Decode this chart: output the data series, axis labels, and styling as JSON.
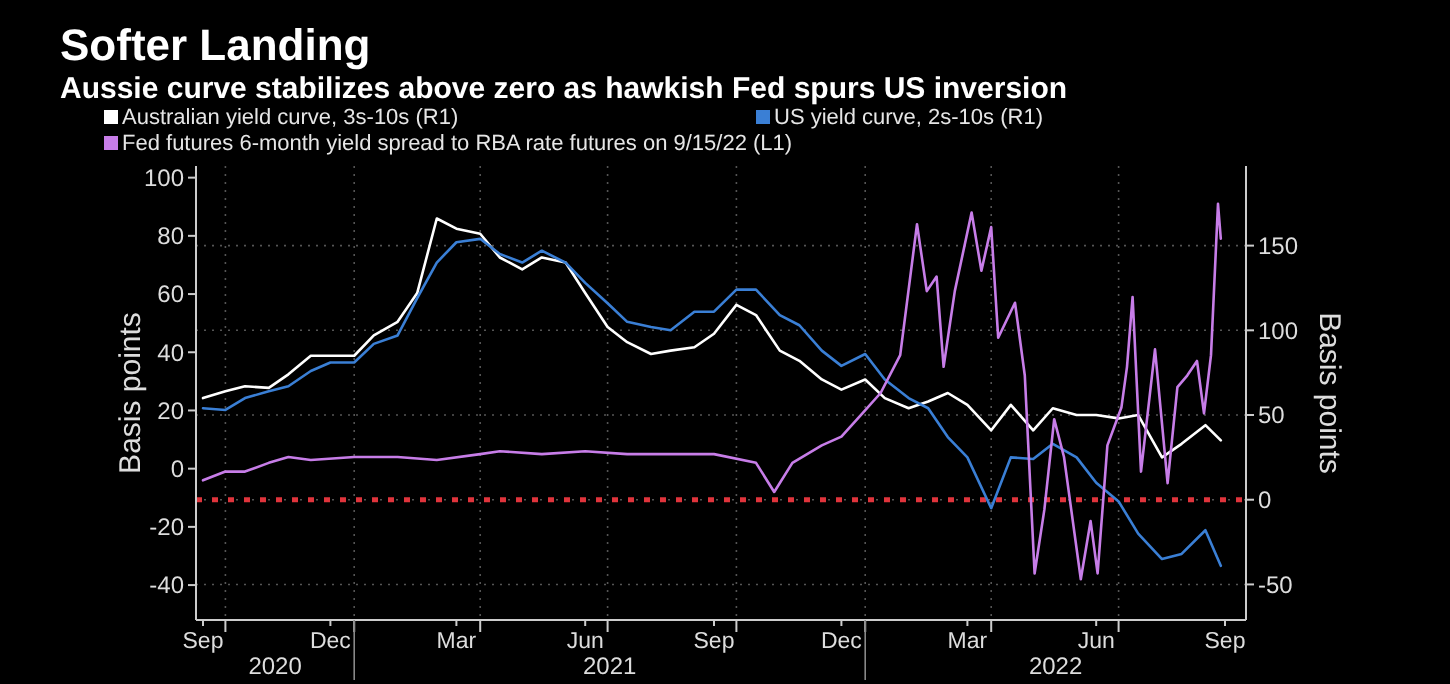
{
  "chart_data": {
    "type": "line",
    "title": "Softer Landing",
    "subtitle": "Aussie curve stabilizes above zero as hawkish Fed spurs US inversion",
    "ylabel": "Basis points",
    "y2label": "Basis points",
    "x": [
      "2020-09-15",
      "2020-10-01",
      "2020-10-15",
      "2020-11-01",
      "2020-11-15",
      "2020-12-01",
      "2020-12-15",
      "2021-01-01",
      "2021-01-15",
      "2021-02-01",
      "2021-02-15",
      "2021-03-01",
      "2021-03-15",
      "2021-04-01",
      "2021-04-15",
      "2021-05-01",
      "2021-05-15",
      "2021-06-01",
      "2021-06-15",
      "2021-07-01",
      "2021-07-15",
      "2021-08-01",
      "2021-08-15",
      "2021-09-01",
      "2021-09-15",
      "2021-10-01",
      "2021-10-15",
      "2021-11-01",
      "2021-11-15",
      "2021-12-01",
      "2021-12-15",
      "2022-01-01",
      "2022-01-15",
      "2022-02-01",
      "2022-02-15",
      "2022-03-01",
      "2022-03-15",
      "2022-04-01",
      "2022-04-15",
      "2022-05-01",
      "2022-05-15",
      "2022-06-01",
      "2022-06-15",
      "2022-07-01",
      "2022-07-15",
      "2022-08-01",
      "2022-08-15",
      "2022-09-01",
      "2022-09-12"
    ],
    "series": [
      {
        "name": "Australian yield curve, 3s-10s (R1)",
        "color": "#ffffff",
        "axis": "y2",
        "values": [
          60,
          64,
          67,
          66,
          74,
          85,
          85,
          85,
          97,
          105,
          122,
          166,
          160,
          157,
          143,
          136,
          143,
          140,
          122,
          102,
          93,
          86,
          88,
          90,
          98,
          115,
          109,
          88,
          82,
          71,
          65,
          71,
          60,
          54,
          58,
          63,
          56,
          41,
          56,
          41,
          54,
          50,
          50,
          48,
          50,
          25,
          33,
          44,
          35
        ]
      },
      {
        "name": "US yield curve, 2s-10s (R1)",
        "color": "#3a7fd5",
        "axis": "y2",
        "values": [
          54,
          53,
          60,
          64,
          67,
          76,
          81,
          81,
          92,
          97,
          119,
          140,
          152,
          154,
          145,
          140,
          147,
          140,
          128,
          116,
          105,
          102,
          100,
          111,
          111,
          124,
          124,
          109,
          103,
          88,
          79,
          86,
          71,
          60,
          54,
          37,
          25,
          -5,
          25,
          24,
          33,
          25,
          10,
          -1,
          -20,
          -35,
          -32,
          -18,
          -39
        ]
      },
      {
        "name": "Fed futures 6-month yield spread to RBA rate futures on 9/15/22 (L1)",
        "color": "#c77de8",
        "axis": "y",
        "x": [
          "2020-09-15",
          "2020-10-01",
          "2020-10-15",
          "2020-11-01",
          "2020-11-15",
          "2020-12-01",
          "2021-01-01",
          "2021-02-01",
          "2021-03-01",
          "2021-04-01",
          "2021-04-15",
          "2021-05-15",
          "2021-06-15",
          "2021-07-15",
          "2021-08-15",
          "2021-09-15",
          "2021-10-15",
          "2021-10-28",
          "2021-11-10",
          "2021-12-01",
          "2021-12-15",
          "2021-12-30",
          "2022-01-12",
          "2022-01-26",
          "2022-02-07",
          "2022-02-14",
          "2022-02-21",
          "2022-02-26",
          "2022-03-06",
          "2022-03-18",
          "2022-03-25",
          "2022-04-01",
          "2022-04-06",
          "2022-04-18",
          "2022-04-25",
          "2022-05-02",
          "2022-05-09",
          "2022-05-16",
          "2022-05-23",
          "2022-06-04",
          "2022-06-11",
          "2022-06-16",
          "2022-06-23",
          "2022-07-03",
          "2022-07-07",
          "2022-07-11",
          "2022-07-17",
          "2022-07-27",
          "2022-08-05",
          "2022-08-12",
          "2022-08-19",
          "2022-08-26",
          "2022-08-31",
          "2022-09-05",
          "2022-09-10",
          "2022-09-12"
        ],
        "values": [
          -4,
          -1,
          -1,
          2,
          4,
          3,
          4,
          4,
          3,
          5,
          6,
          5,
          6,
          5,
          5,
          5,
          2,
          -8,
          2,
          8,
          11,
          19,
          26,
          39,
          84,
          61,
          66,
          35,
          61,
          88,
          68,
          83,
          45,
          57,
          32,
          -36,
          -14,
          17,
          4,
          -38,
          -18,
          -36,
          8,
          21,
          35,
          59,
          -1,
          41,
          -5,
          28,
          32,
          37,
          19,
          39,
          91,
          79
        ]
      }
    ],
    "xlim": [
      "2020-09-10",
      "2022-09-30"
    ],
    "xticks": [
      {
        "value": "2020-09-15",
        "label": "Sep"
      },
      {
        "value": "2020-10-01",
        "label": null
      },
      {
        "value": "2020-12-15",
        "label": "Dec"
      },
      {
        "value": "2021-01-01",
        "label": null
      },
      {
        "value": "2021-03-15",
        "label": "Mar"
      },
      {
        "value": "2021-04-01",
        "label": null
      },
      {
        "value": "2021-06-15",
        "label": "Jun"
      },
      {
        "value": "2021-07-01",
        "label": null
      },
      {
        "value": "2021-09-15",
        "label": "Sep"
      },
      {
        "value": "2021-10-01",
        "label": null
      },
      {
        "value": "2021-12-15",
        "label": "Dec"
      },
      {
        "value": "2022-01-01",
        "label": null
      },
      {
        "value": "2022-03-15",
        "label": "Mar"
      },
      {
        "value": "2022-04-01",
        "label": null
      },
      {
        "value": "2022-06-15",
        "label": "Jun"
      },
      {
        "value": "2022-07-01",
        "label": null
      },
      {
        "value": "2022-09-15",
        "label": "Sep"
      }
    ],
    "ylim": [
      -52,
      104
    ],
    "yticks": [
      -40,
      -20,
      0,
      20,
      40,
      60,
      80,
      100
    ],
    "y2lim": [
      -71,
      197
    ],
    "y2ticks": [
      -50,
      0,
      50,
      100,
      150
    ],
    "ref_lines": [
      {
        "axis": "y2",
        "value": 0,
        "color": "#e0343c",
        "line_style": "dotted"
      }
    ],
    "annotations": [
      "2020",
      "2021",
      "2022"
    ],
    "grid": true,
    "legend": "top",
    "line_style": "solid",
    "marker": "none"
  }
}
